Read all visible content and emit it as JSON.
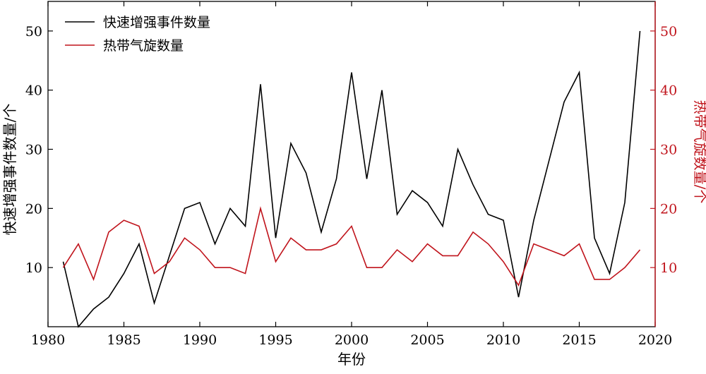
{
  "chart_data": {
    "type": "line",
    "xlabel": "年份",
    "ylabel_left": "快速增强事件数量/个",
    "ylabel_right": "热带气旋数量/个",
    "xlim": [
      1980,
      2020
    ],
    "ylim_left": [
      0,
      55
    ],
    "ylim_right": [
      0,
      55
    ],
    "x_ticks": [
      1980,
      1985,
      1990,
      1995,
      2000,
      2005,
      2010,
      2015,
      2020
    ],
    "y_ticks_left": [
      10,
      20,
      30,
      40,
      50
    ],
    "y_ticks_right": [
      10,
      20,
      30,
      40,
      50
    ],
    "legend_position": "top-left",
    "grid": false,
    "x": [
      1981,
      1982,
      1983,
      1984,
      1985,
      1986,
      1987,
      1988,
      1989,
      1990,
      1991,
      1992,
      1993,
      1994,
      1995,
      1996,
      1997,
      1998,
      1999,
      2000,
      2001,
      2002,
      2003,
      2004,
      2005,
      2006,
      2007,
      2008,
      2009,
      2010,
      2011,
      2012,
      2013,
      2014,
      2015,
      2016,
      2017,
      2018,
      2019
    ],
    "series": [
      {
        "name": "快速增强事件数量",
        "axis": "left",
        "color": "#000000",
        "values": [
          11,
          0,
          3,
          5,
          9,
          14,
          4,
          12,
          20,
          21,
          14,
          20,
          17,
          41,
          15,
          31,
          26,
          16,
          25,
          43,
          25,
          40,
          19,
          23,
          21,
          17,
          30,
          24,
          19,
          18,
          5,
          18,
          28,
          38,
          43,
          15,
          9,
          21,
          50
        ]
      },
      {
        "name": "热带气旋数量",
        "axis": "right",
        "color": "#c0141c",
        "values": [
          10,
          14,
          8,
          16,
          18,
          17,
          9,
          11,
          15,
          13,
          10,
          10,
          9,
          20,
          11,
          15,
          13,
          13,
          14,
          17,
          10,
          10,
          13,
          11,
          14,
          12,
          12,
          16,
          14,
          11,
          7,
          14,
          13,
          12,
          14,
          8,
          8,
          10,
          13
        ]
      }
    ]
  }
}
